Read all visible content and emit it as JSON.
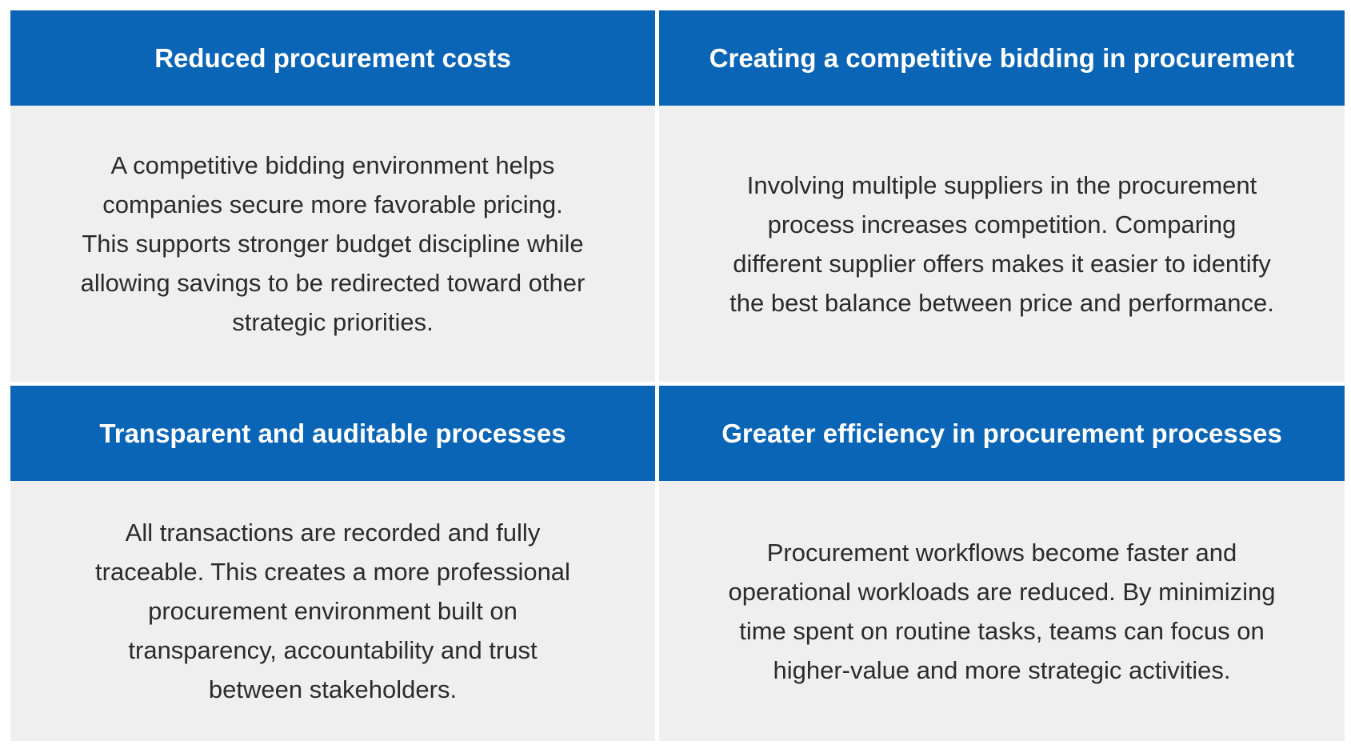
{
  "cards": [
    {
      "title": "Reduced procurement costs",
      "lines": [
        "A competitive bidding environment helps",
        "companies secure more favorable pricing.",
        "This supports stronger budget discipline while",
        "allowing savings to be redirected toward other",
        "strategic priorities."
      ]
    },
    {
      "title": "Creating a competitive bidding in procurement",
      "lines": [
        "Involving multiple suppliers in the procurement",
        "process increases competition. Comparing",
        "different supplier offers makes it easier to identify",
        "the best balance between price and performance."
      ]
    },
    {
      "title": "Transparent and auditable processes",
      "lines": [
        "All transactions are recorded and fully",
        "traceable. This creates a more professional",
        "procurement environment built on",
        "transparency, accountability and trust",
        "between stakeholders."
      ]
    },
    {
      "title": "Greater efficiency in procurement processes",
      "lines": [
        "Procurement workflows become faster and",
        "operational workloads are reduced. By minimizing",
        "time spent on routine tasks, teams can focus on",
        "higher-value and more strategic activities."
      ]
    }
  ]
}
